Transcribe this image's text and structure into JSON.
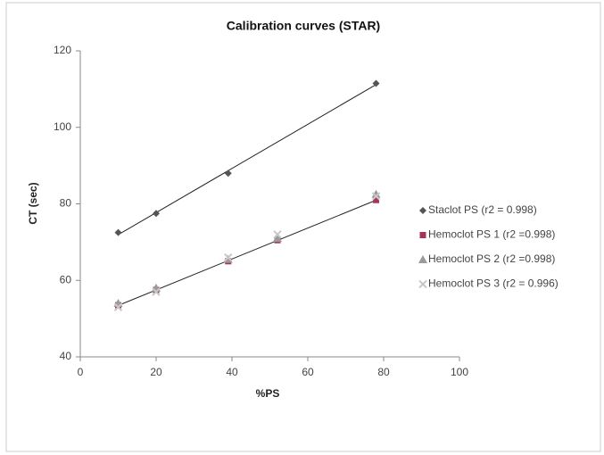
{
  "chart_data": {
    "type": "scatter",
    "title": "Calibration curves (STAR)",
    "x_label": "%PS",
    "y_label": "CT (sec)",
    "xlim": [
      0,
      100
    ],
    "xticks": [
      0,
      20,
      40,
      60,
      80,
      100
    ],
    "ylim": [
      40,
      120
    ],
    "yticks": [
      40,
      60,
      80,
      100,
      120
    ],
    "series": [
      {
        "name": "Staclot PS (r2 = 0.998)",
        "color": "#555555",
        "marker": "diamond",
        "x": [
          10,
          20,
          39,
          78
        ],
        "values": [
          72.5,
          77.5,
          88,
          111.5
        ]
      },
      {
        "name": "Hemoclot PS 1 (r2 =0.998)",
        "color": "#a8325a",
        "marker": "square",
        "x": [
          10,
          20,
          39,
          52,
          78
        ],
        "values": [
          53.5,
          57.5,
          65,
          70.5,
          81
        ]
      },
      {
        "name": "Hemoclot PS 2 (r2 =0.998)",
        "color": "#9a9a9a",
        "marker": "triangle",
        "x": [
          10,
          20,
          39,
          52,
          78
        ],
        "values": [
          54,
          58,
          65.5,
          71,
          82.5
        ]
      },
      {
        "name": "Hemoclot PS 3 (r2 = 0.996)",
        "color": "#c8c8c8",
        "marker": "cross",
        "x": [
          10,
          20,
          39,
          52,
          78
        ],
        "values": [
          53,
          57,
          66,
          72,
          82
        ]
      }
    ]
  }
}
